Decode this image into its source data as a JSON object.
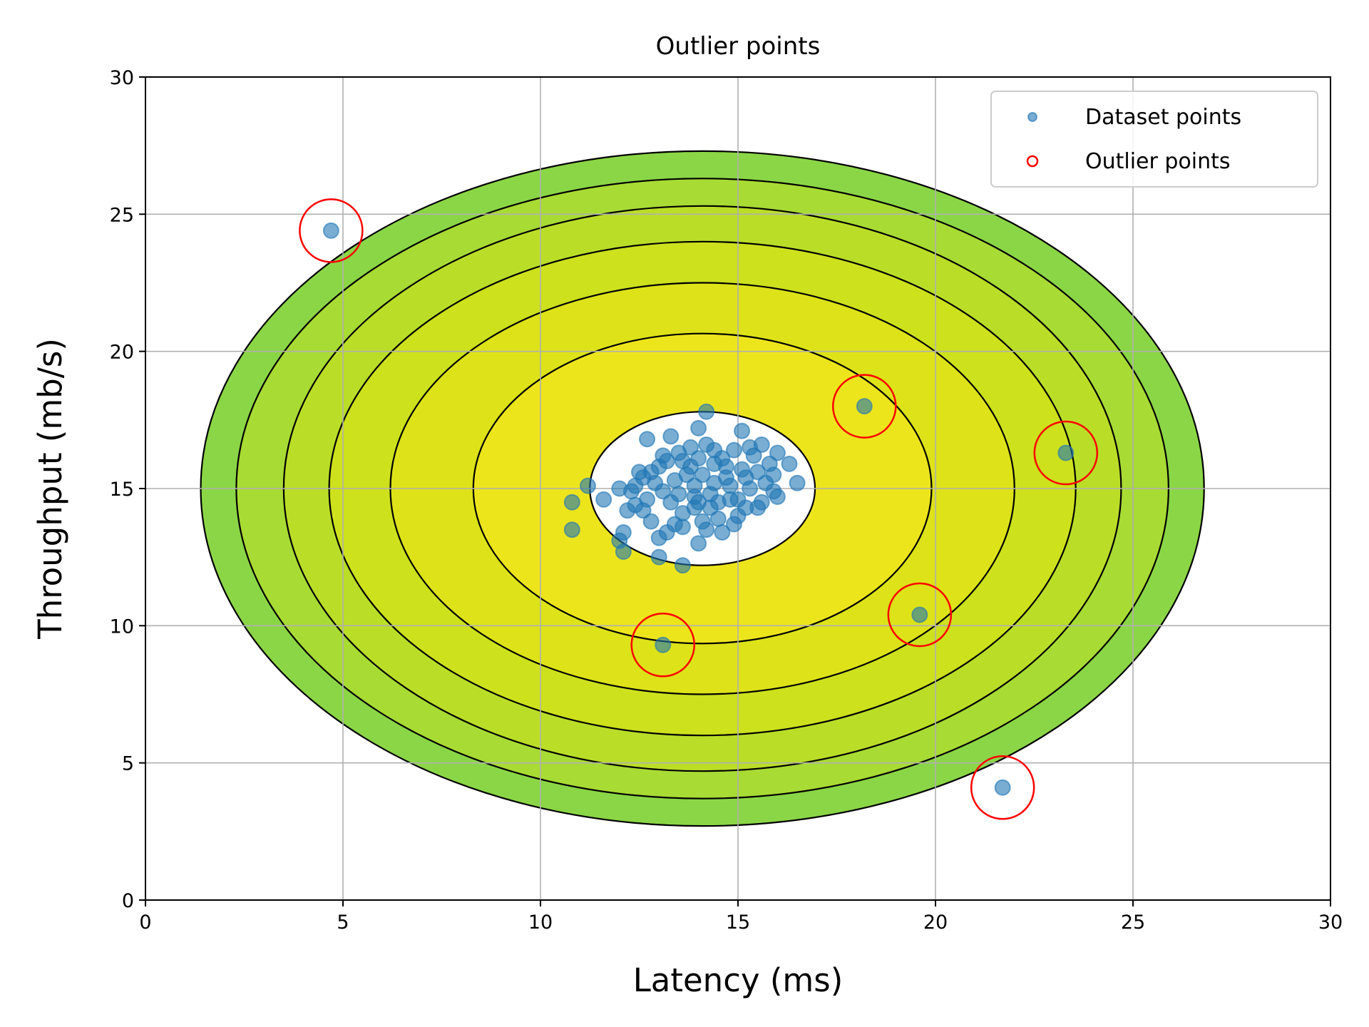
{
  "chart_data": {
    "type": "scatter",
    "title": "Outlier points",
    "xlabel": "Latency (ms)",
    "ylabel": "Throughput (mb/s)",
    "xlim": [
      0,
      30
    ],
    "ylim": [
      0,
      30
    ],
    "xticks": [
      "0",
      "5",
      "10",
      "15",
      "20",
      "25",
      "30"
    ],
    "yticks": [
      "0",
      "5",
      "10",
      "15",
      "20",
      "25",
      "30"
    ],
    "grid": true,
    "legend_position": "top-right",
    "legend": [
      {
        "label": "Dataset points",
        "marker": "filled-circle",
        "color": "#1f77b4"
      },
      {
        "label": "Outlier points",
        "marker": "open-circle",
        "color": "#ff0000"
      }
    ],
    "contour": {
      "center": [
        14.1,
        15.0
      ],
      "levels": [
        {
          "rx": 2.85,
          "ry": 2.8,
          "fill": "#ffffff"
        },
        {
          "rx": 5.8,
          "ry": 5.65,
          "fill": "#ede51c"
        },
        {
          "rx": 7.9,
          "ry": 7.5,
          "fill": "#dde318"
        },
        {
          "rx": 9.45,
          "ry": 9.0,
          "fill": "#cde11d"
        },
        {
          "rx": 10.6,
          "ry": 10.3,
          "fill": "#bade28"
        },
        {
          "rx": 11.8,
          "ry": 11.3,
          "fill": "#a8db34"
        },
        {
          "rx": 12.7,
          "ry": 12.3,
          "fill": "#8bd646"
        }
      ]
    },
    "dataset_points": {
      "name": "Dataset points",
      "color": "#1f77b4",
      "points": [
        [
          14.2,
          17.8
        ],
        [
          14.0,
          17.2
        ],
        [
          13.3,
          16.9
        ],
        [
          12.7,
          16.8
        ],
        [
          14.2,
          16.6
        ],
        [
          15.1,
          17.1
        ],
        [
          15.6,
          16.6
        ],
        [
          16.0,
          16.3
        ],
        [
          16.3,
          15.9
        ],
        [
          15.9,
          15.5
        ],
        [
          16.5,
          15.2
        ],
        [
          16.0,
          14.7
        ],
        [
          15.5,
          14.3
        ],
        [
          15.0,
          14.0
        ],
        [
          14.6,
          13.4
        ],
        [
          14.0,
          13.0
        ],
        [
          13.6,
          12.2
        ],
        [
          13.0,
          12.5
        ],
        [
          12.1,
          12.7
        ],
        [
          12.1,
          13.4
        ],
        [
          12.0,
          13.1
        ],
        [
          11.2,
          15.1
        ],
        [
          11.6,
          14.6
        ],
        [
          10.8,
          14.5
        ],
        [
          10.8,
          13.5
        ],
        [
          12.5,
          15.6
        ],
        [
          12.3,
          14.9
        ],
        [
          12.6,
          14.2
        ],
        [
          12.8,
          13.8
        ],
        [
          13.2,
          13.4
        ],
        [
          13.5,
          16.3
        ],
        [
          13.8,
          15.8
        ],
        [
          13.4,
          15.3
        ],
        [
          13.9,
          14.7
        ],
        [
          14.4,
          15.2
        ],
        [
          14.7,
          15.8
        ],
        [
          14.3,
          14.3
        ],
        [
          14.8,
          14.6
        ],
        [
          15.2,
          15.4
        ],
        [
          15.4,
          16.2
        ],
        [
          14.9,
          16.4
        ],
        [
          13.1,
          14.9
        ],
        [
          12.9,
          15.2
        ],
        [
          13.6,
          14.1
        ],
        [
          14.1,
          13.8
        ],
        [
          14.6,
          16.1
        ],
        [
          15.3,
          15.0
        ],
        [
          14.0,
          16.1
        ],
        [
          13.7,
          15.5
        ],
        [
          12.8,
          15.6
        ],
        [
          12.0,
          15.0
        ],
        [
          12.4,
          14.4
        ],
        [
          15.7,
          15.2
        ],
        [
          15.0,
          14.6
        ],
        [
          14.5,
          13.9
        ],
        [
          13.9,
          14.3
        ],
        [
          13.3,
          14.5
        ],
        [
          13.6,
          13.6
        ],
        [
          12.6,
          15.4
        ],
        [
          14.3,
          14.8
        ],
        [
          13.0,
          13.2
        ],
        [
          12.2,
          14.2
        ],
        [
          15.8,
          15.9
        ],
        [
          14.8,
          15.1
        ],
        [
          14.1,
          15.5
        ],
        [
          13.5,
          14.8
        ],
        [
          14.5,
          14.5
        ],
        [
          15.1,
          15.7
        ],
        [
          14.4,
          16.4
        ],
        [
          13.8,
          16.5
        ],
        [
          13.2,
          16.0
        ],
        [
          15.5,
          15.6
        ],
        [
          15.9,
          14.9
        ],
        [
          14.9,
          13.7
        ],
        [
          14.2,
          13.5
        ],
        [
          13.4,
          13.7
        ],
        [
          12.7,
          14.6
        ],
        [
          14.7,
          15.4
        ],
        [
          13.0,
          15.8
        ],
        [
          13.9,
          15.1
        ],
        [
          14.4,
          15.9
        ],
        [
          15.2,
          14.3
        ],
        [
          12.4,
          15.1
        ],
        [
          15.6,
          14.5
        ],
        [
          14.0,
          14.5
        ],
        [
          13.6,
          16.0
        ],
        [
          13.1,
          16.2
        ],
        [
          15.3,
          16.5
        ],
        [
          4.7,
          24.4
        ],
        [
          18.2,
          18.0
        ],
        [
          23.3,
          16.3
        ],
        [
          19.6,
          10.4
        ],
        [
          13.1,
          9.3
        ],
        [
          21.7,
          4.1
        ]
      ]
    },
    "outlier_points": {
      "name": "Outlier points",
      "color": "#ff0000",
      "points": [
        [
          4.7,
          24.4
        ],
        [
          18.2,
          18.0
        ],
        [
          23.3,
          16.3
        ],
        [
          19.6,
          10.4
        ],
        [
          13.1,
          9.3
        ],
        [
          21.7,
          4.1
        ]
      ]
    }
  }
}
